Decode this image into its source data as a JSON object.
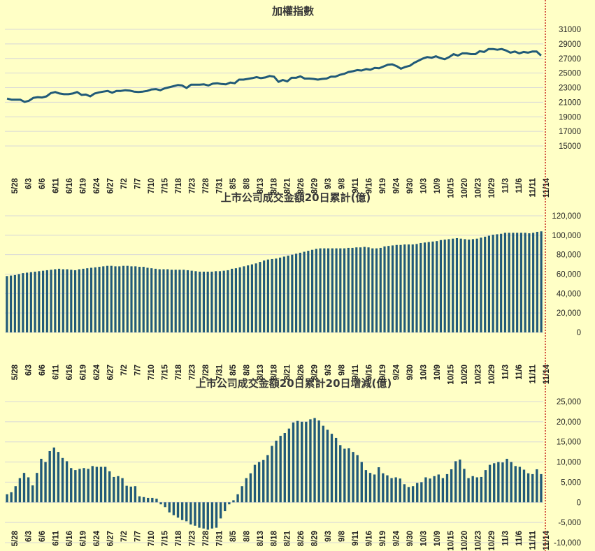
{
  "colors": {
    "background": "#FFFFC6",
    "series": "#215A78",
    "grid": "#D8D8D8",
    "marker": "#C00000"
  },
  "chart_data": [
    {
      "type": "line",
      "title": "加權指數",
      "ylim": [
        15000,
        31000
      ],
      "y_ticks": [
        "31000",
        "29000",
        "27000",
        "25000",
        "23000",
        "21000",
        "19000",
        "17000",
        "15000"
      ],
      "x_labels": [
        "5/28",
        "6/3",
        "6/6",
        "6/11",
        "6/16",
        "6/19",
        "6/24",
        "6/27",
        "7/2",
        "7/7",
        "7/10",
        "7/15",
        "7/18",
        "7/23",
        "7/28",
        "7/31",
        "8/5",
        "8/8",
        "8/13",
        "8/18",
        "8/21",
        "8/26",
        "8/29",
        "9/3",
        "9/8",
        "9/11",
        "9/16",
        "9/19",
        "9/24",
        "9/30",
        "10/3",
        "10/9",
        "10/15",
        "10/20",
        "10/23",
        "10/29",
        "11/3",
        "11/6",
        "11/11",
        "11/14"
      ],
      "values": [
        21500,
        21350,
        21350,
        21350,
        21050,
        21200,
        21600,
        21700,
        21650,
        21800,
        22250,
        22400,
        22200,
        22100,
        22100,
        22200,
        22400,
        22000,
        22050,
        21800,
        22200,
        22350,
        22450,
        22550,
        22300,
        22550,
        22550,
        22650,
        22600,
        22450,
        22400,
        22450,
        22550,
        22750,
        22800,
        22650,
        22900,
        23050,
        23200,
        23350,
        23300,
        22950,
        23400,
        23400,
        23400,
        23450,
        23300,
        23550,
        23600,
        23500,
        23450,
        23700,
        23600,
        24100,
        24100,
        24200,
        24300,
        24450,
        24300,
        24400,
        24600,
        24500,
        23800,
        24050,
        23850,
        24350,
        24350,
        24550,
        24250,
        24250,
        24200,
        24100,
        24200,
        24250,
        24500,
        24500,
        24750,
        24900,
        25150,
        25250,
        25400,
        25350,
        25550,
        25450,
        25700,
        25650,
        25900,
        26150,
        26200,
        25950,
        25600,
        25850,
        26000,
        26400,
        26700,
        27000,
        27200,
        27100,
        27300,
        27050,
        26900,
        27200,
        27600,
        27400,
        27700,
        27700,
        27600,
        27600,
        28000,
        27900,
        28300,
        28300,
        28200,
        28300,
        28100,
        27800,
        27950,
        27700,
        27900,
        27800,
        27950,
        27950,
        27400
      ]
    },
    {
      "type": "bar",
      "title": "上市公司成交金額20日累計(億)",
      "ylim": [
        0,
        120000
      ],
      "y_ticks": [
        "120,000",
        "100,000",
        "80,000",
        "60,000",
        "40,000",
        "20,000",
        "0"
      ],
      "x_labels": [
        "5/28",
        "6/3",
        "6/6",
        "6/11",
        "6/16",
        "6/19",
        "6/24",
        "6/27",
        "7/2",
        "7/7",
        "7/10",
        "7/15",
        "7/18",
        "7/23",
        "7/28",
        "7/31",
        "8/5",
        "8/8",
        "8/13",
        "8/18",
        "8/21",
        "8/26",
        "8/29",
        "9/3",
        "9/8",
        "9/11",
        "9/16",
        "9/19",
        "9/24",
        "9/30",
        "10/3",
        "10/9",
        "10/15",
        "10/20",
        "10/23",
        "10/29",
        "11/3",
        "11/6",
        "11/11",
        "11/14"
      ],
      "values": [
        58000,
        58500,
        59000,
        60000,
        61000,
        61500,
        62000,
        62500,
        63000,
        63500,
        64000,
        64500,
        65000,
        65500,
        65000,
        65000,
        64500,
        64000,
        65000,
        65500,
        66000,
        66500,
        67000,
        67500,
        68000,
        68500,
        68500,
        68000,
        68000,
        68500,
        68500,
        68000,
        68000,
        67500,
        67500,
        66500,
        66000,
        65500,
        65000,
        65000,
        65000,
        64500,
        64500,
        64500,
        64500,
        64000,
        63500,
        63000,
        62500,
        62500,
        62500,
        62500,
        63000,
        63000,
        63500,
        64000,
        65500,
        66000,
        67000,
        68000,
        69000,
        70000,
        71000,
        72500,
        74000,
        75000,
        75500,
        76000,
        77000,
        78000,
        79000,
        80000,
        81000,
        82000,
        83000,
        84000,
        85000,
        86000,
        86500,
        86500,
        86500,
        86500,
        86500,
        86500,
        86500,
        87000,
        87000,
        87500,
        87500,
        88000,
        87500,
        86500,
        86500,
        87000,
        88500,
        89000,
        89500,
        90000,
        90000,
        90500,
        90500,
        90500,
        91000,
        92000,
        92500,
        93000,
        93500,
        94000,
        95000,
        95500,
        96000,
        96500,
        97000,
        96500,
        96000,
        95500,
        96000,
        96500,
        97500,
        98500,
        99500,
        100500,
        101000,
        101500,
        102500,
        102500,
        102500,
        102500,
        102500,
        102500,
        102000,
        102500,
        103500,
        104000
      ]
    },
    {
      "type": "bar",
      "title": "上市公司成交金額20日累計20日增減(億)",
      "ylim": [
        -10000,
        25000
      ],
      "y_ticks": [
        "25,000",
        "20,000",
        "15,000",
        "10,000",
        "5,000",
        "0",
        "-5,000",
        "-10,000"
      ],
      "x_labels": [
        "5/28",
        "6/3",
        "6/6",
        "6/11",
        "6/16",
        "6/19",
        "6/24",
        "6/27",
        "7/2",
        "7/7",
        "7/10",
        "7/15",
        "7/18",
        "7/23",
        "7/28",
        "7/31",
        "8/5",
        "8/8",
        "8/13",
        "8/18",
        "8/21",
        "8/26",
        "8/29",
        "9/3",
        "9/8",
        "9/11",
        "9/16",
        "9/19",
        "9/24",
        "9/30",
        "10/3",
        "10/9",
        "10/15",
        "10/20",
        "10/23",
        "10/29",
        "11/3",
        "11/6",
        "11/11",
        "11/14"
      ],
      "values": [
        2000,
        2500,
        4000,
        6000,
        7300,
        6200,
        4200,
        7300,
        10800,
        10000,
        12700,
        13600,
        12500,
        11000,
        10200,
        8500,
        8000,
        8300,
        8500,
        8300,
        9000,
        8800,
        8800,
        8800,
        7700,
        6300,
        6500,
        6000,
        4100,
        3900,
        4000,
        1500,
        1300,
        1100,
        1100,
        900,
        -500,
        -1200,
        -2500,
        -3200,
        -3800,
        -4400,
        -4700,
        -5500,
        -5800,
        -6300,
        -6500,
        -6800,
        -6500,
        -6300,
        -4000,
        -2200,
        -500,
        500,
        2000,
        4000,
        6000,
        7200,
        9300,
        10000,
        10500,
        11700,
        14000,
        15300,
        16500,
        17200,
        18300,
        19800,
        20200,
        20000,
        20000,
        20600,
        20900,
        20300,
        19000,
        18000,
        17000,
        16000,
        14200,
        13300,
        13400,
        12500,
        11700,
        10000,
        8000,
        7300,
        6900,
        8700,
        7200,
        6700,
        6000,
        6200,
        5900,
        4500,
        3800,
        4000,
        4800,
        5000,
        6200,
        5900,
        6500,
        6900,
        6000,
        7000,
        8200,
        10200,
        10600,
        8300,
        6000,
        6500,
        6200,
        6300,
        8000,
        9300,
        9700,
        10000,
        9900,
        10800,
        10000,
        9000,
        8800,
        8100,
        7200,
        7000,
        8200,
        7000
      ]
    }
  ]
}
